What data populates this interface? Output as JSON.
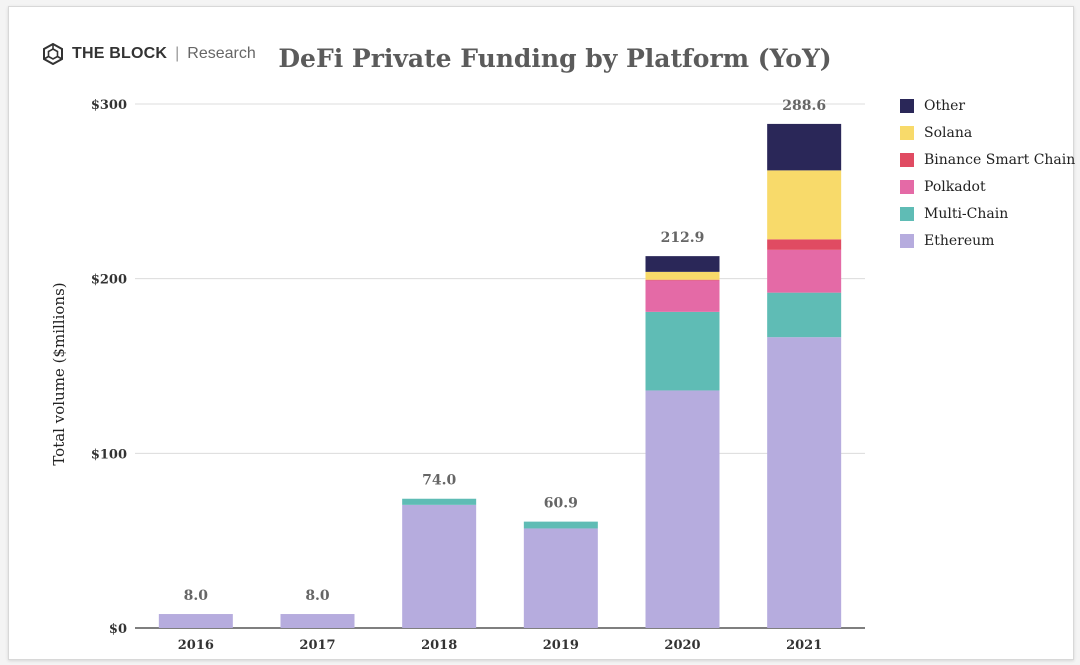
{
  "brand": {
    "name": "THE BLOCK",
    "separator": "|",
    "sub": "Research"
  },
  "chart_data": {
    "type": "bar",
    "stacked": true,
    "title": "DeFi Private Funding by Platform (YoY)",
    "xlabel": "",
    "ylabel": "Total volume ($millions)",
    "ylim": [
      0,
      300
    ],
    "yticks": [
      0,
      100,
      200,
      300
    ],
    "ytick_labels": [
      "$0",
      "$100",
      "$200",
      "$300"
    ],
    "grid": true,
    "legend_position": "right",
    "categories": [
      "2016",
      "2017",
      "2018",
      "2019",
      "2020",
      "2021"
    ],
    "totals": [
      "8.0",
      "8.0",
      "74.0",
      "60.9",
      "212.9",
      "288.6"
    ],
    "series": [
      {
        "name": "Ethereum",
        "color": "#b6acde",
        "values": [
          8.0,
          8.0,
          70.5,
          57.0,
          136.0,
          166.5
        ]
      },
      {
        "name": "Multi-Chain",
        "color": "#5fbcb5",
        "values": [
          0,
          0,
          3.5,
          3.9,
          45.0,
          25.5
        ]
      },
      {
        "name": "Polkadot",
        "color": "#e46aa6",
        "values": [
          0,
          0,
          0,
          0,
          18.0,
          24.5
        ]
      },
      {
        "name": "Binance Smart Chain",
        "color": "#e04b62",
        "values": [
          0,
          0,
          0,
          0,
          0.4,
          6.0
        ]
      },
      {
        "name": "Solana",
        "color": "#f8da6a",
        "values": [
          0,
          0,
          0,
          0,
          4.5,
          39.5
        ]
      },
      {
        "name": "Other",
        "color": "#2a2758",
        "values": [
          0,
          0,
          0,
          0,
          9.0,
          26.6
        ]
      }
    ]
  }
}
